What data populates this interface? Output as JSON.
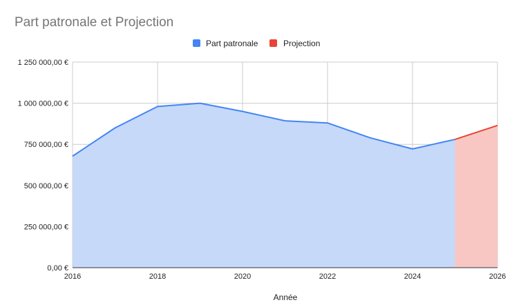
{
  "chart_data": {
    "type": "area",
    "title": "Part patronale et Projection",
    "xlabel": "Année",
    "ylabel": "",
    "xlim": [
      2016,
      2026
    ],
    "ylim": [
      0,
      1250000
    ],
    "x_ticks": [
      "2016",
      "2018",
      "2020",
      "2022",
      "2024",
      "2026"
    ],
    "y_ticks": [
      "0,00 €",
      "250 000,00 €",
      "500 000,00 €",
      "750 000,00 €",
      "1 000 000,00 €",
      "1 250 000,00 €"
    ],
    "grid": true,
    "legend_position": "top",
    "series": [
      {
        "name": "Part patronale",
        "color": "#4285f4",
        "fill": "#c6d9f8",
        "x": [
          2016,
          2017,
          2018,
          2019,
          2020,
          2021,
          2022,
          2023,
          2024,
          2025
        ],
        "values": [
          678000,
          850000,
          980000,
          1000000,
          950000,
          893000,
          880000,
          790000,
          722000,
          780000
        ]
      },
      {
        "name": "Projection",
        "color": "#ea4335",
        "fill": "#f8c7c3",
        "x": [
          2025,
          2026
        ],
        "values": [
          780000,
          865000
        ]
      }
    ]
  }
}
